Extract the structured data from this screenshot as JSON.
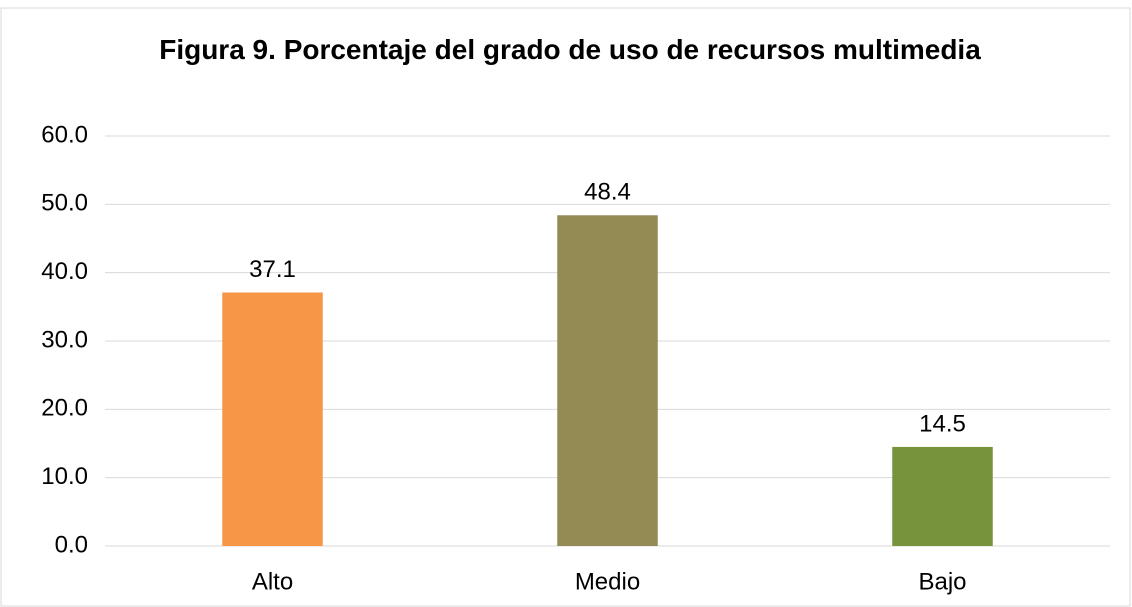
{
  "chart_data": {
    "type": "bar",
    "title": "Figura 9. Porcentaje del grado de uso de recursos multimedia",
    "categories": [
      "Alto",
      "Medio",
      "Bajo"
    ],
    "values": [
      37.1,
      48.4,
      14.5
    ],
    "colors": [
      "#f79646",
      "#948a54",
      "#77933c"
    ],
    "ylim": [
      0,
      60
    ],
    "yticks": [
      {
        "value": 0,
        "label": "0.0"
      },
      {
        "value": 10,
        "label": "10.0"
      },
      {
        "value": 20,
        "label": "20.0"
      },
      {
        "value": 30,
        "label": "30.0"
      },
      {
        "value": 40,
        "label": "40.0"
      },
      {
        "value": 50,
        "label": "50.0"
      },
      {
        "value": 60,
        "label": "60.0"
      }
    ],
    "grid": true
  }
}
